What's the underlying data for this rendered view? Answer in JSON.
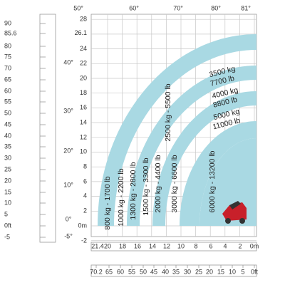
{
  "angle_labels_top": [
    "50°",
    "60°",
    "70°",
    "80°",
    "81°"
  ],
  "angle_labels_left": [
    "40°",
    "30°",
    "20°",
    "10°",
    "0°",
    "-5°"
  ],
  "height_m": [
    "28",
    "26.1",
    "24",
    "22",
    "20",
    "18",
    "16",
    "14",
    "12",
    "10",
    "8",
    "6",
    "4",
    "2",
    "0m",
    "-2"
  ],
  "height_ft": [
    "90",
    "85.6",
    "80",
    "75",
    "70",
    "65",
    "60",
    "55",
    "50",
    "45",
    "40",
    "35",
    "30",
    "25",
    "20",
    "15",
    "10",
    "5",
    "0ft",
    "-5"
  ],
  "reach_m": [
    "21.4",
    "20",
    "18",
    "16",
    "14",
    "12",
    "10",
    "8",
    "6",
    "4",
    "2",
    "0m"
  ],
  "reach_ft": [
    "70.2",
    "65",
    "60",
    "55",
    "50",
    "45",
    "40",
    "35",
    "30",
    "25",
    "20",
    "15",
    "10",
    "5",
    "0ft"
  ],
  "zones_vertical": [
    "800 kg - 1700 lb",
    "1000 kg - 2200 lb",
    "1300 kg - 2800 lb",
    "1500 kg - 3300 lb",
    "2000 kg - 4400 lb",
    "2500 kg - 5500 lb",
    "3000 kg - 6600 lb",
    "6000 kg - 13200 lb"
  ],
  "zones_upper": [
    [
      "3500 kg",
      "7700 lb"
    ],
    [
      "4000 kg",
      "8800 lb"
    ],
    [
      "5000 kg",
      "11000 lb"
    ]
  ]
}
